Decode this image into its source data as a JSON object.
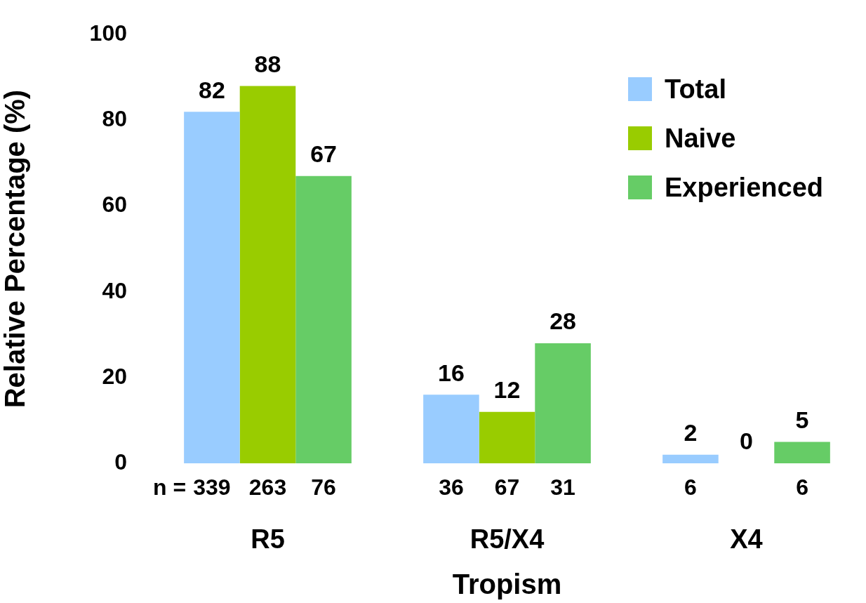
{
  "chart_data": {
    "type": "bar",
    "xlabel": "Tropism",
    "ylabel": "Relative Percentage (%)",
    "categories": [
      "R5",
      "R5/X4",
      "X4"
    ],
    "series": [
      {
        "name": "Total",
        "color": "#99ccff",
        "values": [
          82,
          16,
          2
        ]
      },
      {
        "name": "Naive",
        "color": "#99cc00",
        "values": [
          88,
          12,
          0
        ]
      },
      {
        "name": "Experienced",
        "color": "#66cc66",
        "values": [
          67,
          28,
          5
        ]
      }
    ],
    "ylim": [
      0,
      100
    ],
    "yticks": [
      0,
      20,
      40,
      60,
      80,
      100
    ],
    "grid": false,
    "legend": "top right",
    "data_labels": true,
    "annotations": [
      "n =",
      "339",
      "263",
      "76",
      "36",
      "67",
      "31",
      "6",
      "6"
    ]
  }
}
